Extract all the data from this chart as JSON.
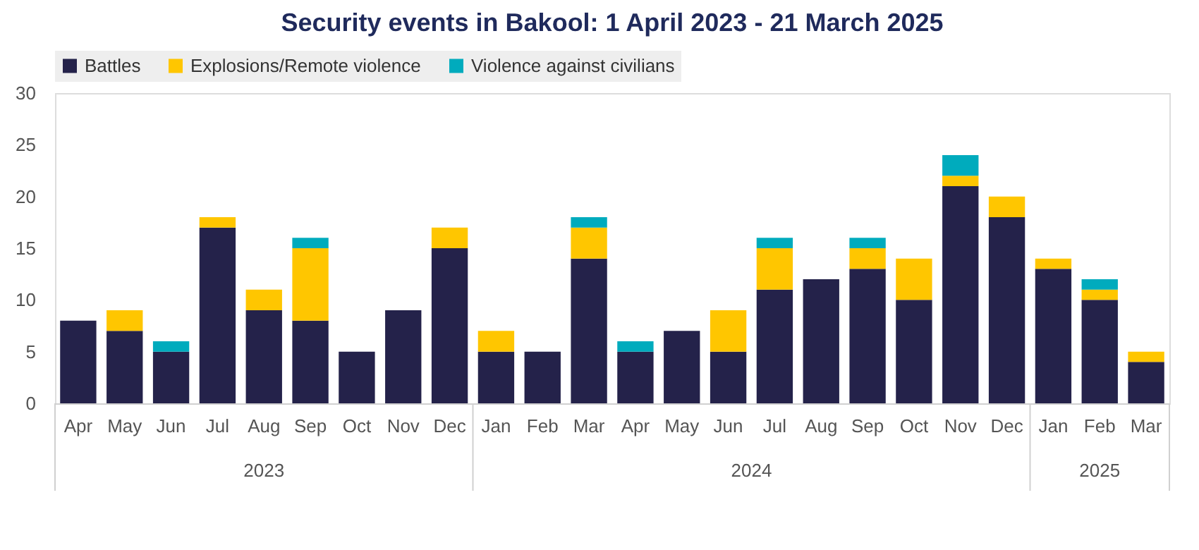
{
  "chart_data": {
    "type": "bar",
    "title": "Security events in Bakool: 1 April 2023 - 21 March 2025",
    "categories": [
      "Apr",
      "May",
      "Jun",
      "Jul",
      "Aug",
      "Sep",
      "Oct",
      "Nov",
      "Dec",
      "Jan",
      "Feb",
      "Mar",
      "Apr",
      "May",
      "Jun",
      "Jul",
      "Aug",
      "Sep",
      "Oct",
      "Nov",
      "Dec",
      "Jan",
      "Feb",
      "Mar"
    ],
    "stacked": true,
    "series": [
      {
        "name": "Battles",
        "color": "#24224a",
        "values": [
          8,
          7,
          5,
          17,
          9,
          8,
          5,
          9,
          15,
          5,
          5,
          14,
          5,
          7,
          5,
          11,
          12,
          13,
          10,
          21,
          18,
          13,
          10,
          4
        ]
      },
      {
        "name": "Explosions/Remote violence",
        "color": "#ffc600",
        "values": [
          0,
          2,
          0,
          1,
          2,
          7,
          0,
          0,
          2,
          2,
          0,
          3,
          0,
          0,
          4,
          4,
          0,
          2,
          4,
          1,
          2,
          1,
          1,
          1
        ]
      },
      {
        "name": "Violence against civilians",
        "color": "#00abbd",
        "values": [
          0,
          0,
          1,
          0,
          0,
          1,
          0,
          0,
          0,
          0,
          0,
          1,
          1,
          0,
          0,
          1,
          0,
          1,
          0,
          2,
          0,
          0,
          1,
          0
        ]
      }
    ],
    "annotations": [
      "2023",
      "2024",
      "2025"
    ],
    "ylim": [
      0,
      30
    ],
    "yticks": [
      0,
      5,
      10,
      15,
      20,
      25,
      30
    ],
    "grid": false,
    "legend": "top"
  }
}
